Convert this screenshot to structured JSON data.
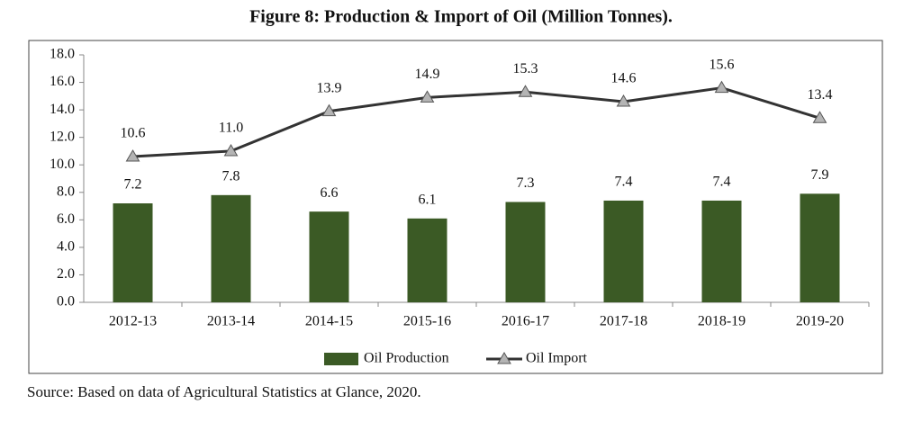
{
  "chart_data": {
    "type": "bar",
    "title": "Figure 8: Production & Import of Oil (Million Tonnes).",
    "categories": [
      "2012-13",
      "2013-14",
      "2014-15",
      "2015-16",
      "2016-17",
      "2017-18",
      "2018-19",
      "2019-20"
    ],
    "series": [
      {
        "name": "Oil Production",
        "type": "bar",
        "color": "#3b5a25",
        "values": [
          7.2,
          7.8,
          6.6,
          6.1,
          7.3,
          7.4,
          7.4,
          7.9
        ]
      },
      {
        "name": "Oil Import",
        "type": "line",
        "color": "#333333",
        "marker_color": "#b4b4b4",
        "values": [
          10.6,
          11.0,
          13.9,
          14.9,
          15.3,
          14.6,
          15.6,
          13.4
        ],
        "value_labels": [
          "10.6",
          "11.0",
          "13.9",
          "14.9",
          "15.3",
          "14.6",
          "15.6",
          "13.4"
        ]
      }
    ],
    "ylim": [
      0,
      18
    ],
    "yticks": [
      {
        "value": 0,
        "label": "0.0"
      },
      {
        "value": 2,
        "label": "2.0"
      },
      {
        "value": 4,
        "label": "4.0"
      },
      {
        "value": 6,
        "label": "6.0"
      },
      {
        "value": 8,
        "label": "8.0"
      },
      {
        "value": 10,
        "label": "10.0"
      },
      {
        "value": 12,
        "label": "12.0"
      },
      {
        "value": 14,
        "label": "14.0"
      },
      {
        "value": 16,
        "label": "16.0"
      },
      {
        "value": 18,
        "label": "18.0"
      }
    ],
    "grid": false,
    "legend": "bottom",
    "source": "Source: Based on data of Agricultural Statistics at Glance, 2020."
  }
}
